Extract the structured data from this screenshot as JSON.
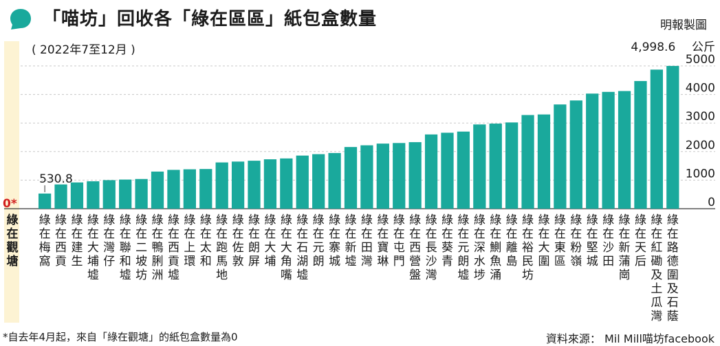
{
  "header": {
    "title": "「喵坊」回收各「綠在區區」紙包盒數量",
    "credit": "明報製圖",
    "accent": "#1aa99c"
  },
  "footer": {
    "footnote": "*自去年4月起，來自「綠在觀塘」的紙包盒數量為0",
    "source": "資料來源： Mil Mill喵坊facebook"
  },
  "chart_data": {
    "type": "bar",
    "subtitle": "( 2022年7至12月 )",
    "unit": "公斤",
    "ylim": [
      0,
      5000
    ],
    "yticks": [
      0,
      1000,
      2000,
      3000,
      4000,
      5000
    ],
    "bar_color": "#1aa99c",
    "highlight_color": "#fdf3d3",
    "grid": true,
    "categories": [
      "綠在觀塘",
      "綠在梅窩",
      "綠在西貢",
      "綠在建生",
      "綠在大埔墟",
      "綠在灣仔",
      "綠在聯和墟",
      "綠在二坡坊",
      "綠在鴨脷洲",
      "綠在西貢墟",
      "綠在上環",
      "綠在太和",
      "綠在跑馬地",
      "綠在佐敦",
      "綠在朗屏",
      "綠在大埔",
      "綠在大角嘴",
      "綠在石湖墟",
      "綠在元朗",
      "綠在寨城",
      "綠在新墟",
      "綠在田灣",
      "綠在寶琳",
      "綠在屯門",
      "綠在西營盤",
      "綠在長沙灣",
      "綠在葵青",
      "綠在元朗墟",
      "綠在深水埗",
      "綠在鰂魚涌",
      "綠在離島",
      "綠在裕民坊",
      "綠在大圍",
      "綠在東區",
      "綠在粉嶺",
      "綠在堅城",
      "綠在沙田",
      "綠在新蒲崗",
      "綠在天后",
      "綠在紅磡及土瓜灣",
      "綠在路德圍及石蔭"
    ],
    "values": [
      0,
      530.8,
      850,
      920,
      960,
      1000,
      1020,
      1040,
      1300,
      1360,
      1380,
      1390,
      1620,
      1650,
      1680,
      1730,
      1760,
      1860,
      1910,
      1950,
      2160,
      2220,
      2280,
      2300,
      2330,
      2600,
      2660,
      2700,
      2950,
      2980,
      3020,
      3280,
      3300,
      3650,
      3790,
      4030,
      4090,
      4120,
      4470,
      4870,
      4998.6
    ],
    "value_labels": [
      {
        "index": 0,
        "text": "0*"
      },
      {
        "index": 1,
        "text": "530.8"
      },
      {
        "index": 40,
        "text": "4,998.6"
      }
    ]
  }
}
